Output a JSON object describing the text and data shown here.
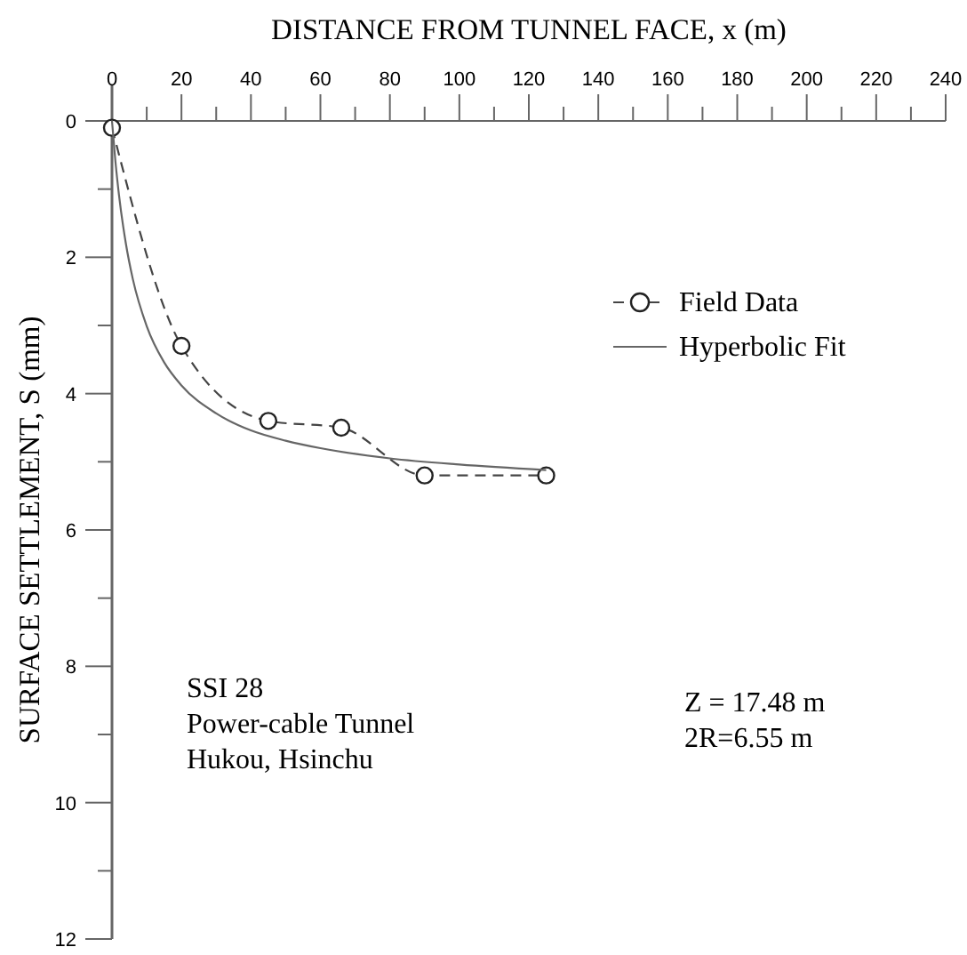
{
  "chart_data": {
    "type": "line",
    "xlabel": "DISTANCE FROM  TUNNEL FACE, x (m)",
    "ylabel": "SURFACE SETTLEMENT, S (mm)",
    "xlim": [
      0,
      240
    ],
    "xticks": [
      0,
      {
        "value": 10,
        "label": null
      },
      20,
      {
        "value": 30,
        "label": null
      },
      40,
      {
        "value": 50,
        "label": null
      },
      60,
      {
        "value": 70,
        "label": null
      },
      80,
      {
        "value": 90,
        "label": null
      },
      100,
      {
        "value": 110,
        "label": null
      },
      120,
      {
        "value": 130,
        "label": null
      },
      140,
      {
        "value": 150,
        "label": null
      },
      160,
      {
        "value": 170,
        "label": null
      },
      180,
      {
        "value": 190,
        "label": null
      },
      200,
      {
        "value": 210,
        "label": null
      },
      220,
      {
        "value": 230,
        "label": null
      },
      240
    ],
    "ylim": [
      12,
      0
    ],
    "yticks": [
      0,
      {
        "value": 1,
        "label": null
      },
      2,
      {
        "value": 3,
        "label": null
      },
      4,
      {
        "value": 5,
        "label": null
      },
      6,
      {
        "value": 7,
        "label": null
      },
      8,
      {
        "value": 9,
        "label": null
      },
      10,
      {
        "value": 11,
        "label": null
      },
      12
    ],
    "legend": "top right",
    "series": [
      {
        "name": "Field Data",
        "color": "#444444",
        "marker": "circle",
        "line_style": "dashed",
        "x": [
          0,
          20,
          45,
          66,
          90,
          125
        ],
        "values": [
          0.1,
          3.3,
          4.4,
          4.5,
          5.2,
          5.2
        ]
      },
      {
        "name": "Hyperbolic Fit",
        "color": "#666666",
        "marker": "none",
        "line_style": "solid",
        "x": [
          0,
          1,
          2,
          4,
          6,
          10,
          15,
          20,
          30,
          40,
          50,
          60,
          80,
          100,
          125
        ],
        "values": [
          0,
          0.6,
          1.08,
          1.8,
          2.32,
          3.01,
          3.54,
          3.88,
          4.29,
          4.54,
          4.69,
          4.8,
          4.95,
          5.04,
          5.12
        ]
      }
    ],
    "annotations": [
      "SSI 28\nPower-cable Tunnel\nHukou, Hsinchu",
      "Z = 17.48 m\n2R=6.55 m"
    ]
  }
}
